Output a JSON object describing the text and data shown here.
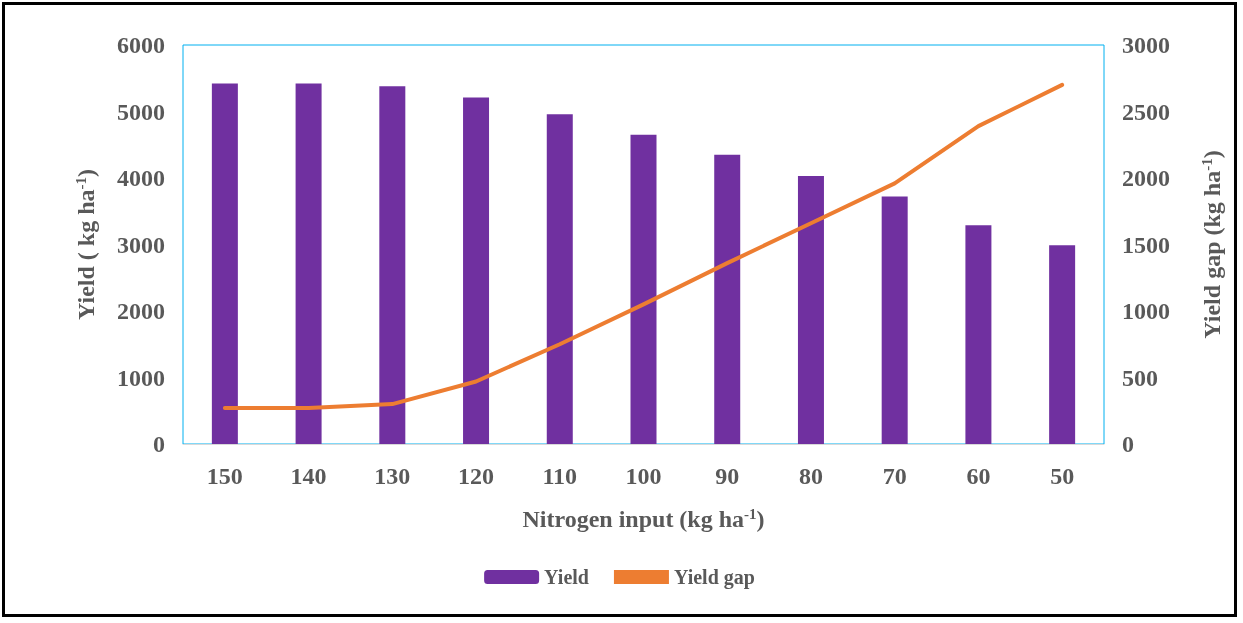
{
  "chart_data": {
    "type": "bar",
    "xlabel": "Nitrogen input (kg ha$^{-1}$)",
    "ylabel": "Yield ( kg ha$^{-1}$)",
    "y2label": "Yield gap (kg ha$^{-1}$)",
    "categories": [
      "150",
      "140",
      "130",
      "120",
      "110",
      "100",
      "90",
      "80",
      "70",
      "60",
      "50"
    ],
    "series": [
      {
        "name": "Yield",
        "color": "#7030a0",
        "values": [
          5420,
          5420,
          5380,
          5210,
          4960,
          4650,
          4350,
          4030,
          3720,
          3290,
          2990
        ]
      },
      {
        "name": "Yield gap",
        "type": "line",
        "axis": "y2",
        "color": "#ed7d31",
        "values": [
          270,
          270,
          300,
          470,
          750,
          1050,
          1360,
          1660,
          1960,
          2390,
          2700
        ]
      }
    ],
    "ylim": [
      0,
      6000
    ],
    "yticks": [
      0,
      1000,
      2000,
      3000,
      4000,
      5000,
      6000
    ],
    "y2lim": [
      0,
      3000
    ],
    "y2ticks": [
      0,
      500,
      1000,
      1500,
      2000,
      2500,
      3000
    ],
    "legend": "bottom",
    "grid": false,
    "marker": "none"
  }
}
